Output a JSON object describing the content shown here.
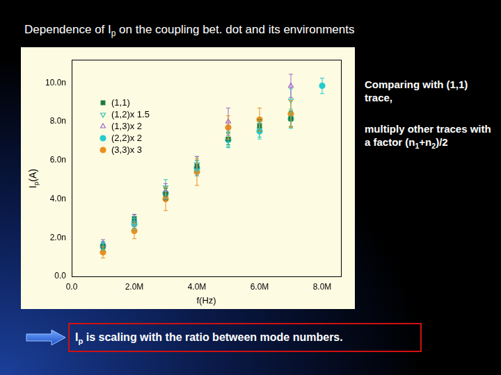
{
  "slide": {
    "title": [
      {
        "text": "Dependence of I"
      },
      {
        "text": "p",
        "sub": true
      },
      {
        "text": " on the coupling bet. dot and its environments"
      }
    ],
    "notes": [
      [
        {
          "text": "Comparing with (1,1) trace,"
        }
      ],
      [
        {
          "text": "multiply other traces with a factor (n"
        },
        {
          "text": "1",
          "sub": true
        },
        {
          "text": "+n"
        },
        {
          "text": "2",
          "sub": true
        },
        {
          "text": ")/2"
        }
      ]
    ],
    "conclusion": [
      {
        "text": "I"
      },
      {
        "text": "p",
        "sub": true
      },
      {
        "text": " is scaling with the ratio between mode numbers."
      }
    ]
  },
  "chart_data": {
    "type": "scatter",
    "x_label": "f(Hz)",
    "y_label": [
      {
        "text": "I"
      },
      {
        "text": "p",
        "sub": true
      },
      {
        "text": "(A)"
      }
    ],
    "x": [
      1000000,
      2000000,
      3000000,
      4000000,
      5000000,
      6000000,
      7000000,
      8000000
    ],
    "xlim": [
      0,
      8600000
    ],
    "xticks": [
      {
        "value": 0,
        "label": "0.0"
      },
      {
        "value": 2000000,
        "label": "2.0M"
      },
      {
        "value": 4000000,
        "label": "4.0M"
      },
      {
        "value": 6000000,
        "label": "6.0M"
      },
      {
        "value": 8000000,
        "label": "8.0M"
      }
    ],
    "ylim": [
      0,
      1.12e-08
    ],
    "yticks": [
      {
        "value": 0,
        "label": "0.0"
      },
      {
        "value": 2e-09,
        "label": "2.0n"
      },
      {
        "value": 4e-09,
        "label": "4.0n"
      },
      {
        "value": 6e-09,
        "label": "6.0n"
      },
      {
        "value": 8e-09,
        "label": "8.0n"
      },
      {
        "value": 1e-08,
        "label": "10.0n"
      }
    ],
    "grid": false,
    "legend": "upper left",
    "series": [
      {
        "name": "(1,1)",
        "color": "#1a7a3a",
        "marker": "square",
        "values": [
          1.55e-09,
          3e-09,
          4.25e-09,
          5.7e-09,
          7.1e-09,
          7.8e-09,
          8.15e-09,
          null
        ],
        "errors": [
          2e-10,
          2e-10,
          3e-10,
          3e-10,
          3e-10,
          3e-10,
          4e-10,
          null
        ]
      },
      {
        "name": "(1,2)x 1.5",
        "color": "#33c0b0",
        "marker": "triangle_down_open",
        "values": [
          1.6e-09,
          2.8e-09,
          4.6e-09,
          5.8e-09,
          7.1e-09,
          7.6e-09,
          9.1e-09,
          null
        ],
        "errors": [
          2e-10,
          3e-10,
          4e-10,
          4e-10,
          4e-10,
          4e-10,
          6e-10,
          null
        ]
      },
      {
        "name": "(1,3)x 2",
        "color": "#9966cc",
        "marker": "triangle_up_open",
        "values": [
          1.7e-09,
          2.9e-09,
          4.4e-09,
          5.7e-09,
          8e-09,
          null,
          9.85e-09,
          null
        ],
        "errors": [
          2e-10,
          3e-10,
          4e-10,
          5e-10,
          7e-10,
          null,
          6e-10,
          null
        ]
      },
      {
        "name": "(2,2)x 2",
        "color": "#22cccc",
        "marker": "circle",
        "values": [
          1.55e-09,
          2.7e-09,
          4.3e-09,
          5.6e-09,
          7.05e-09,
          7.5e-09,
          8.15e-09,
          9.85e-09
        ],
        "errors": [
          2e-10,
          3e-10,
          3e-10,
          4e-10,
          4e-10,
          4e-10,
          5e-10,
          4e-10
        ]
      },
      {
        "name": "(3,3)x 3",
        "color": "#e8901e",
        "marker": "circle",
        "values": [
          1.25e-09,
          2.35e-09,
          4e-09,
          5.4e-09,
          7.7e-09,
          8.1e-09,
          8.4e-09,
          null
        ],
        "errors": [
          3e-10,
          4e-10,
          6e-10,
          7e-10,
          6e-10,
          6e-10,
          7e-10,
          null
        ]
      }
    ]
  }
}
